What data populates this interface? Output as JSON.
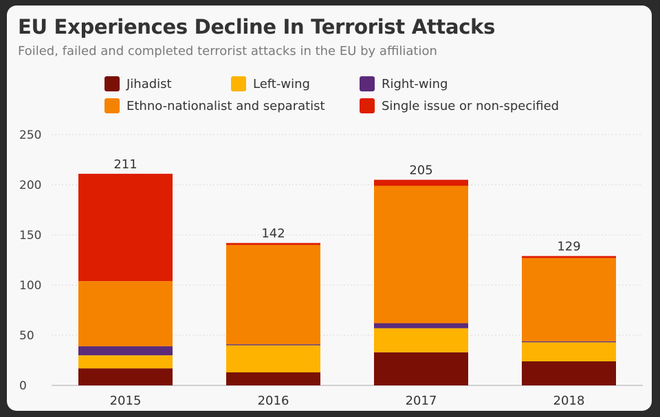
{
  "header": {
    "title": "EU Experiences Decline In Terrorist Attacks",
    "subtitle": "Foiled, failed and completed terrorist attacks in the EU by affiliation"
  },
  "colors": {
    "Jihadist": "#7a1005",
    "Left-wing": "#fdb300",
    "Right-wing": "#5b2b7a",
    "Ethno-nationalist and separatist": "#f68300",
    "Single issue or non-specified": "#dd1e00"
  },
  "chart_data": {
    "type": "bar",
    "stacked": true,
    "title": "EU Experiences Decline In Terrorist Attacks",
    "subtitle": "Foiled, failed and completed terrorist attacks in the EU by affiliation",
    "xlabel": "",
    "ylabel": "",
    "ylim": [
      0,
      250
    ],
    "yticks": [
      0,
      50,
      100,
      150,
      200,
      250
    ],
    "grid": true,
    "legend_position": "top",
    "categories": [
      "2015",
      "2016",
      "2017",
      "2018"
    ],
    "series": [
      {
        "name": "Jihadist",
        "values": [
          17,
          13,
          33,
          24
        ]
      },
      {
        "name": "Left-wing",
        "values": [
          13,
          27,
          24,
          19
        ]
      },
      {
        "name": "Right-wing",
        "values": [
          9,
          1,
          5,
          1
        ]
      },
      {
        "name": "Ethno-nationalist and separatist",
        "values": [
          65,
          99,
          137,
          83
        ]
      },
      {
        "name": "Single issue or non-specified",
        "values": [
          107,
          2,
          6,
          2
        ]
      }
    ],
    "totals": [
      211,
      142,
      205,
      129
    ],
    "total_labels": [
      "211",
      "142",
      "205",
      "129"
    ],
    "ytick_labels": [
      "0",
      "50",
      "100",
      "150",
      "200",
      "250"
    ]
  }
}
